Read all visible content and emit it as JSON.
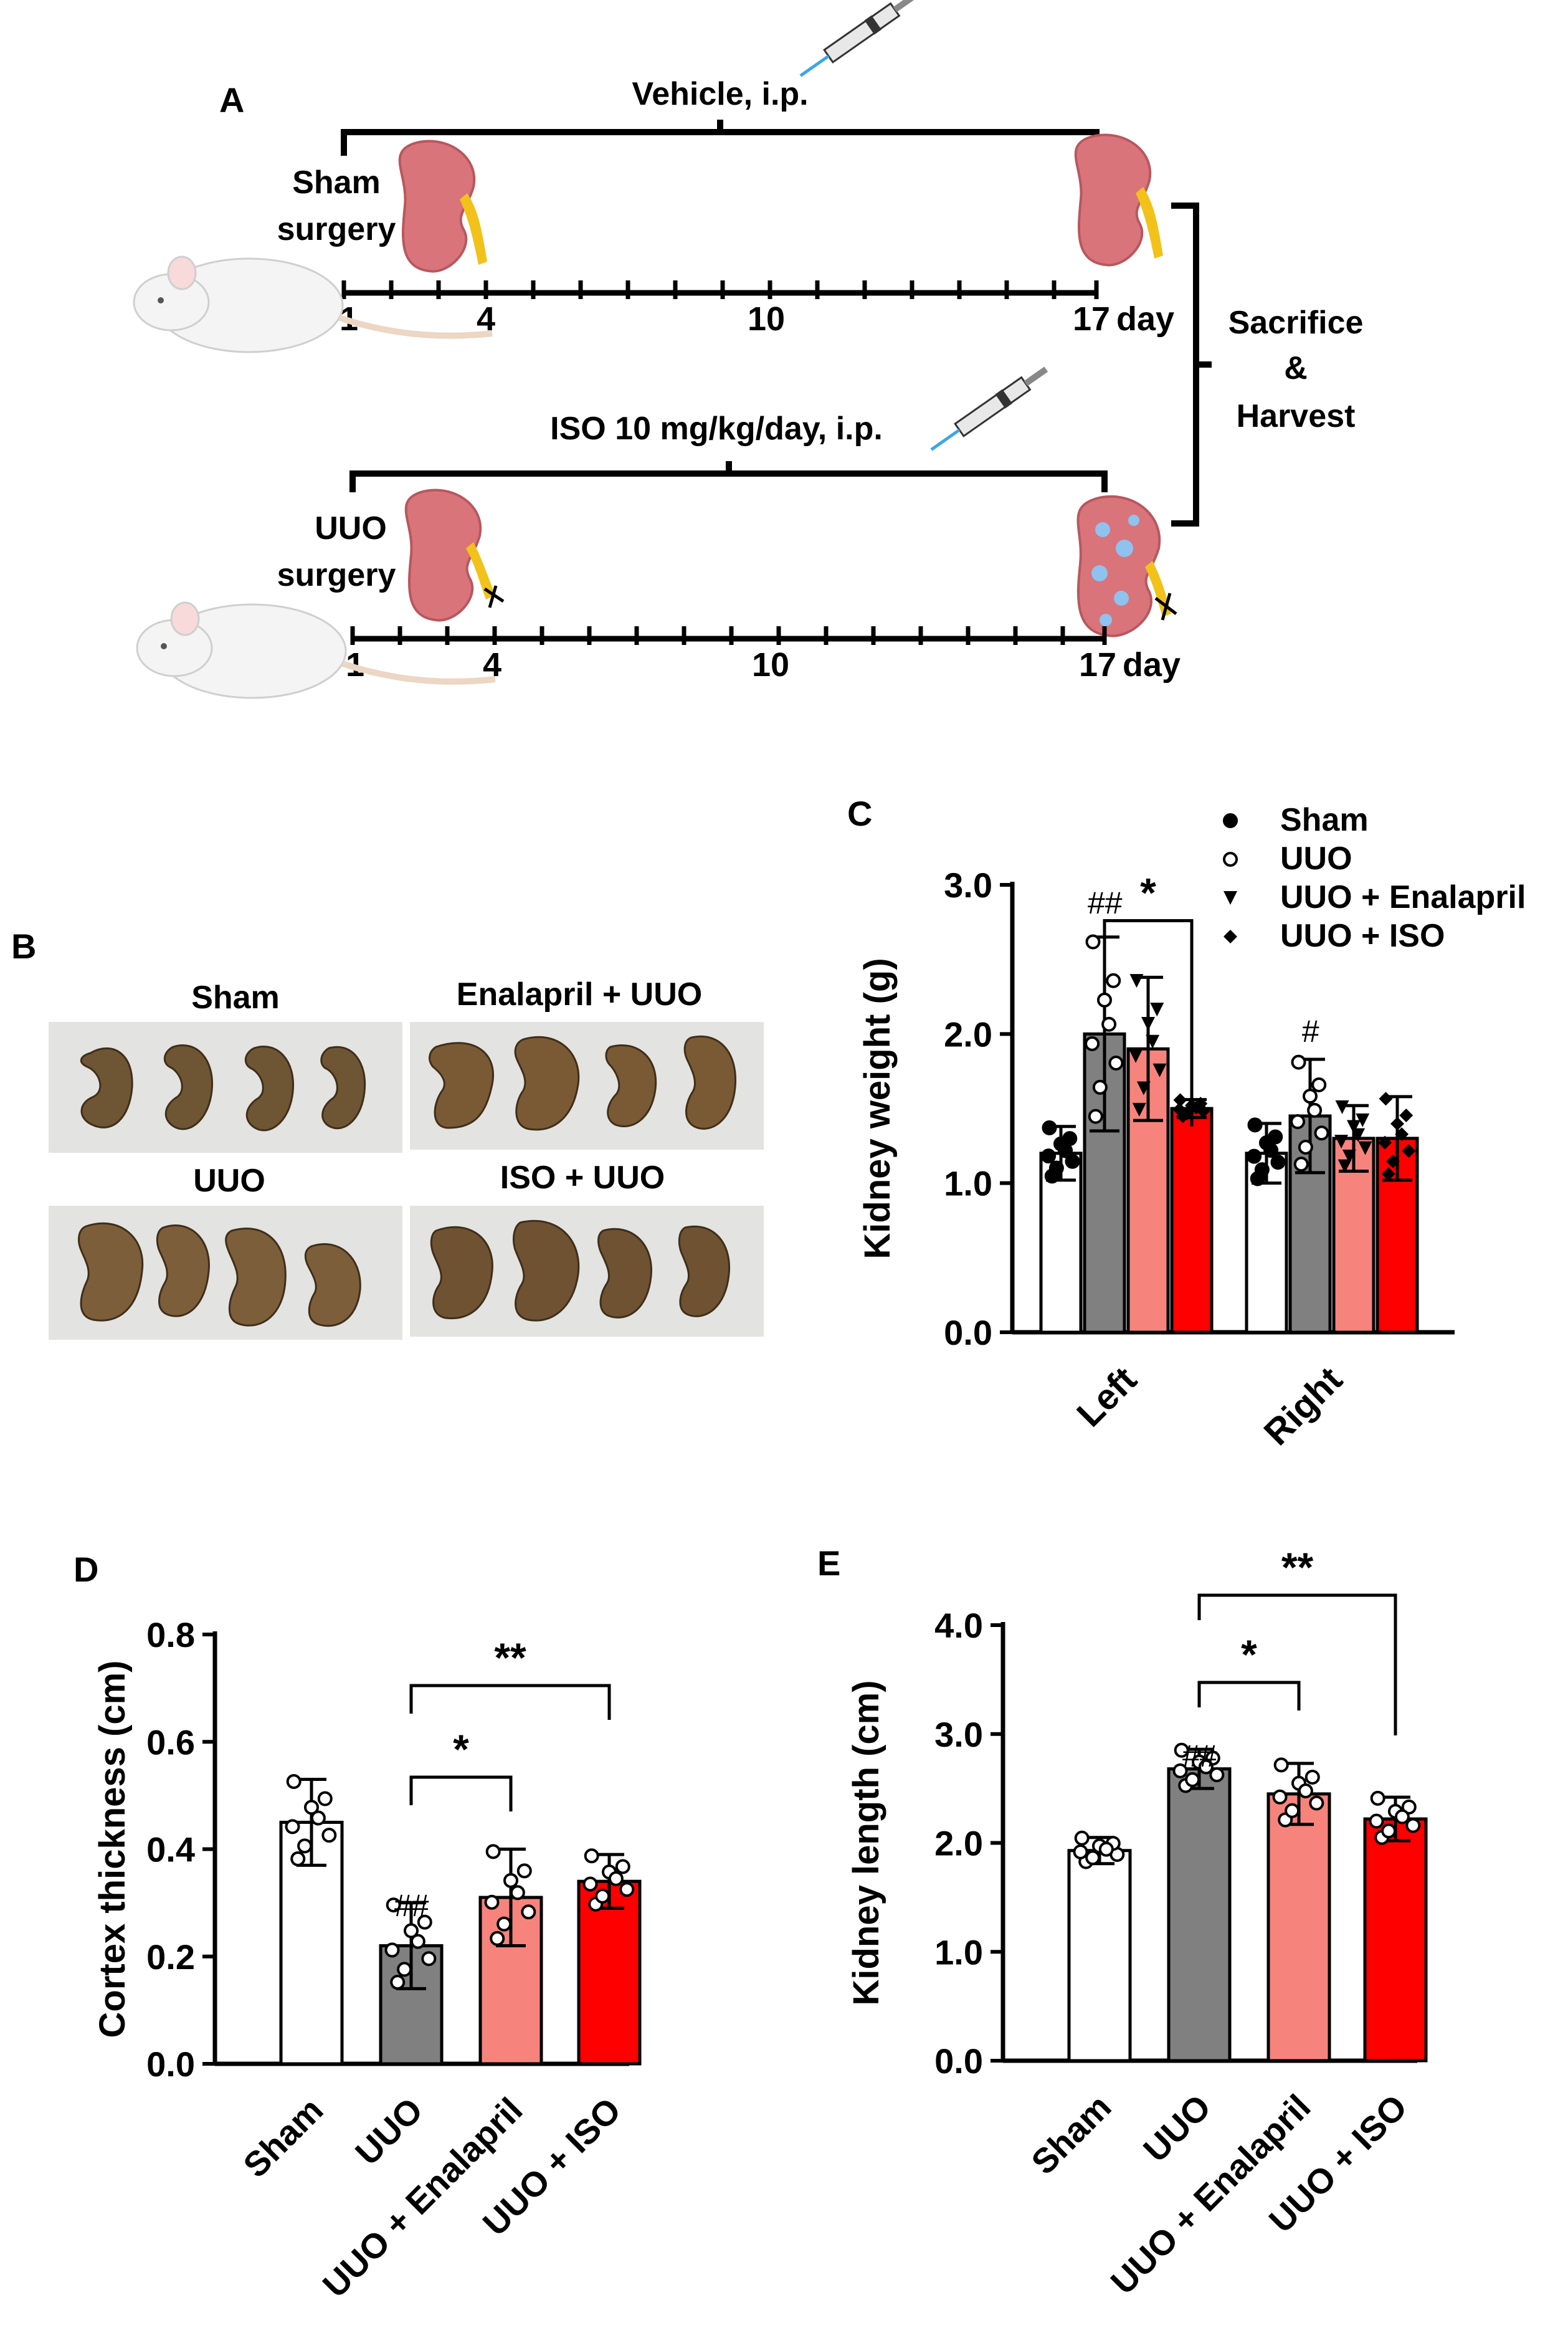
{
  "panels": {
    "A": {
      "letter": "A",
      "sham_row": {
        "treatment": "Vehicle, i.p.",
        "surgery_line1": "Sham",
        "surgery_line2": "surgery",
        "ticks": [
          "1",
          "4",
          "10",
          "17"
        ],
        "unit": "day"
      },
      "uuo_row": {
        "treatment": "ISO 10 mg/kg/day, i.p.",
        "surgery_line1": "UUO",
        "surgery_line2": "surgery",
        "ticks": [
          "1",
          "4",
          "10",
          "17"
        ],
        "unit": "day"
      },
      "outcome_line1": "Sacrifice",
      "outcome_line2": "&",
      "outcome_line3": "Harvest"
    },
    "B": {
      "letter": "B",
      "photos": [
        "Sham",
        "Enalapril + UUO",
        "UUO",
        "ISO + UUO"
      ]
    }
  },
  "colors": {
    "sham": "#ffffff",
    "uuo": "#808080",
    "enalapril": "#f7847c",
    "iso": "#ff0000",
    "kidney": "#d9747a",
    "ureter": "#f2c21a"
  },
  "chart_data": [
    {
      "panel": "C",
      "type": "bar",
      "ylabel": "Kidney weight (g)",
      "ylim": [
        0,
        3.0
      ],
      "yticks": [
        "0.0",
        "1.0",
        "2.0",
        "3.0"
      ],
      "categories": [
        "Left",
        "Right"
      ],
      "series": [
        {
          "name": "Sham",
          "values": [
            1.2,
            1.2
          ],
          "sd": [
            0.18,
            0.2
          ]
        },
        {
          "name": "UUO",
          "values": [
            2.0,
            1.45
          ],
          "sd": [
            0.65,
            0.38
          ]
        },
        {
          "name": "UUO + Enalapril",
          "values": [
            1.9,
            1.3
          ],
          "sd": [
            0.48,
            0.22
          ]
        },
        {
          "name": "UUO + ISO",
          "values": [
            1.5,
            1.3
          ],
          "sd": [
            0.06,
            0.28
          ]
        }
      ],
      "annotations": [
        "##",
        "#",
        "*"
      ],
      "significance": [
        {
          "from": "UUO, Left",
          "to": "UUO + ISO, Left",
          "label": "*"
        }
      ]
    },
    {
      "panel": "D",
      "type": "bar",
      "ylabel": "Cortex thickness (cm)",
      "ylim": [
        0,
        0.8
      ],
      "yticks": [
        "0.0",
        "0.2",
        "0.4",
        "0.6",
        "0.8"
      ],
      "categories": [
        "Sham",
        "UUO",
        "UUO + Enalapril",
        "UUO + ISO"
      ],
      "values": [
        0.45,
        0.22,
        0.31,
        0.34
      ],
      "sd": [
        0.08,
        0.08,
        0.09,
        0.05
      ],
      "annotations": [
        "##"
      ],
      "significance": [
        {
          "from": "UUO",
          "to": "UUO + Enalapril",
          "label": "*"
        },
        {
          "from": "UUO",
          "to": "UUO + ISO",
          "label": "**"
        }
      ]
    },
    {
      "panel": "E",
      "type": "bar",
      "ylabel": "Kidney length (cm)",
      "ylim": [
        0,
        4.0
      ],
      "yticks": [
        "0.0",
        "1.0",
        "2.0",
        "3.0",
        "4.0"
      ],
      "categories": [
        "Sham",
        "UUO",
        "UUO + Enalapril",
        "UUO + ISO"
      ],
      "values": [
        1.93,
        2.68,
        2.45,
        2.22
      ],
      "sd": [
        0.12,
        0.18,
        0.28,
        0.2
      ],
      "annotations": [
        "##"
      ],
      "significance": [
        {
          "from": "UUO",
          "to": "UUO + Enalapril",
          "label": "*"
        },
        {
          "from": "UUO",
          "to": "UUO + ISO",
          "label": "**"
        }
      ]
    }
  ]
}
